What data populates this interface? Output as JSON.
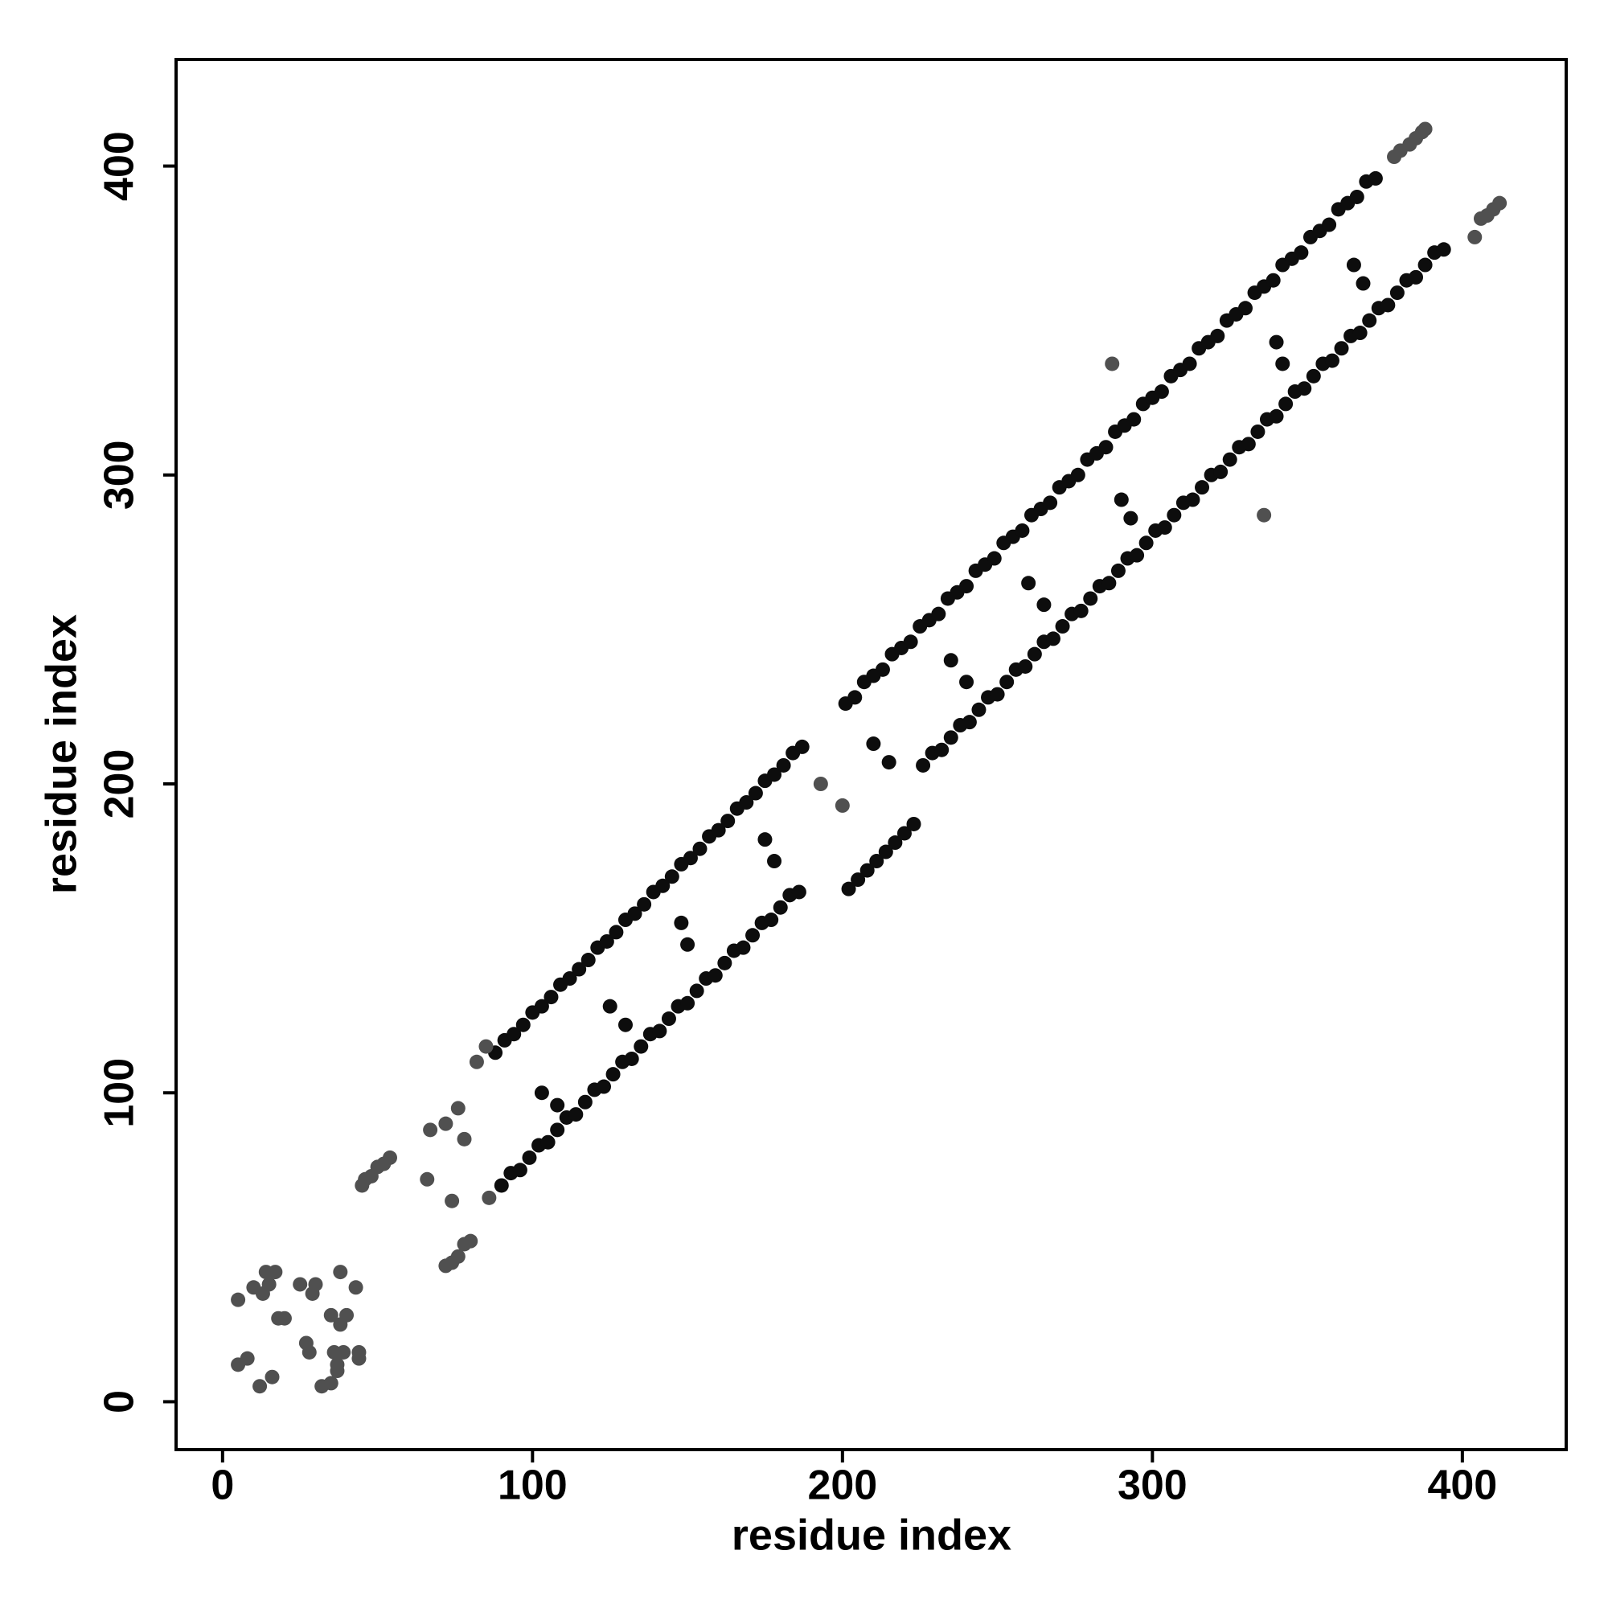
{
  "chart_data": {
    "type": "scatter",
    "xlabel": "residue index",
    "ylabel": "residue index",
    "xlim": [
      -15,
      433.5
    ],
    "ylim": [
      -15.5,
      434.5
    ],
    "xticks": [
      0,
      100,
      200,
      300,
      400
    ],
    "yticks": [
      0,
      100,
      200,
      300,
      400
    ],
    "grid": false,
    "series": [
      {
        "color": "#0d0d0d",
        "x": [
          88,
          91,
          94,
          97,
          100,
          103,
          106,
          109,
          112,
          115,
          118,
          121,
          124,
          127,
          130,
          133,
          136,
          139,
          142,
          145,
          148,
          151,
          154,
          157,
          160,
          163,
          166,
          169,
          172,
          175,
          178,
          181,
          184,
          187,
          201,
          204,
          207,
          210,
          213,
          216,
          219,
          222,
          225,
          228,
          231,
          234,
          237,
          240,
          243,
          246,
          249,
          252,
          255,
          258,
          261,
          264,
          267,
          270,
          273,
          276,
          279,
          282,
          285,
          288,
          291,
          294,
          297,
          300,
          303,
          306,
          309,
          312,
          315,
          318,
          321,
          324,
          327,
          330,
          333,
          336,
          339,
          342,
          345,
          348,
          351,
          354,
          357,
          360,
          363,
          366,
          369,
          372,
          90,
          93,
          96,
          99,
          102,
          105,
          108,
          111,
          114,
          117,
          120,
          123,
          126,
          129,
          132,
          135,
          138,
          141,
          144,
          147,
          150,
          153,
          156,
          159,
          162,
          165,
          168,
          171,
          174,
          177,
          180,
          183,
          186,
          202,
          205,
          208,
          211,
          214,
          217,
          220,
          223,
          226,
          229,
          232,
          235,
          238,
          241,
          244,
          247,
          250,
          253,
          256,
          259,
          262,
          265,
          268,
          271,
          274,
          277,
          280,
          283,
          286,
          289,
          292,
          295,
          298,
          301,
          304,
          307,
          310,
          313,
          316,
          319,
          322,
          325,
          328,
          331,
          334,
          337,
          340,
          343,
          346,
          349,
          352,
          355,
          358,
          361,
          364,
          367,
          370,
          373,
          376,
          379,
          382,
          385,
          388,
          391,
          394,
          103,
          108,
          125,
          130,
          148,
          150,
          175,
          178,
          210,
          215,
          235,
          240,
          260,
          265,
          290,
          293,
          340,
          342,
          365,
          368
        ],
        "values": [
          113,
          117,
          119,
          122,
          126,
          128,
          131,
          135,
          137,
          140,
          143,
          147,
          149,
          152,
          156,
          158,
          161,
          165,
          167,
          170,
          174,
          176,
          179,
          183,
          185,
          188,
          192,
          194,
          197,
          201,
          203,
          206,
          210,
          212,
          226,
          228,
          233,
          235,
          237,
          242,
          244,
          246,
          251,
          253,
          255,
          260,
          262,
          264,
          269,
          271,
          273,
          278,
          280,
          282,
          287,
          289,
          291,
          296,
          298,
          300,
          305,
          307,
          309,
          314,
          316,
          318,
          323,
          325,
          327,
          332,
          334,
          336,
          341,
          343,
          345,
          350,
          352,
          354,
          359,
          361,
          363,
          368,
          370,
          372,
          377,
          379,
          381,
          386,
          388,
          390,
          395,
          396,
          70,
          74,
          75,
          79,
          83,
          84,
          88,
          92,
          93,
          97,
          101,
          102,
          106,
          110,
          111,
          115,
          119,
          120,
          124,
          128,
          129,
          133,
          137,
          138,
          142,
          146,
          147,
          151,
          155,
          156,
          160,
          164,
          165,
          166,
          169,
          172,
          175,
          178,
          181,
          184,
          187,
          206,
          210,
          211,
          215,
          219,
          220,
          224,
          228,
          229,
          233,
          237,
          238,
          242,
          246,
          247,
          251,
          255,
          256,
          260,
          264,
          265,
          269,
          273,
          274,
          278,
          282,
          283,
          287,
          291,
          292,
          296,
          300,
          301,
          305,
          309,
          310,
          314,
          318,
          319,
          323,
          327,
          328,
          332,
          336,
          337,
          341,
          345,
          346,
          350,
          354,
          355,
          359,
          363,
          364,
          368,
          372,
          373,
          100,
          96,
          128,
          122,
          155,
          148,
          182,
          175,
          213,
          207,
          240,
          233,
          265,
          258,
          292,
          286,
          343,
          336,
          368,
          362
        ]
      },
      {
        "color": "#505050",
        "x": [
          5,
          5,
          8,
          10,
          12,
          13,
          14,
          15,
          16,
          17,
          18,
          20,
          25,
          27,
          28,
          29,
          30,
          32,
          35,
          35,
          36,
          37,
          38,
          38,
          39,
          40,
          43,
          44,
          44,
          37,
          45,
          46,
          48,
          50,
          52,
          54,
          66,
          67,
          72,
          74,
          72,
          74,
          76,
          78,
          80,
          78,
          86,
          85,
          76,
          82,
          378,
          380,
          383,
          385,
          387,
          388,
          404,
          406,
          408,
          410,
          412,
          287,
          336,
          193,
          200
        ],
        "values": [
          33,
          12,
          14,
          37,
          5,
          35,
          42,
          38,
          8,
          42,
          27,
          27,
          38,
          19,
          16,
          35,
          38,
          5,
          28,
          6,
          16,
          12,
          42,
          25,
          16,
          28,
          37,
          14,
          16,
          10,
          70,
          72,
          73,
          76,
          77,
          79,
          72,
          88,
          90,
          65,
          44,
          45,
          47,
          51,
          52,
          85,
          66,
          115,
          95,
          110,
          403,
          405,
          407,
          409,
          411,
          412,
          377,
          383,
          384,
          386,
          388,
          336,
          287,
          200,
          193
        ]
      }
    ]
  }
}
